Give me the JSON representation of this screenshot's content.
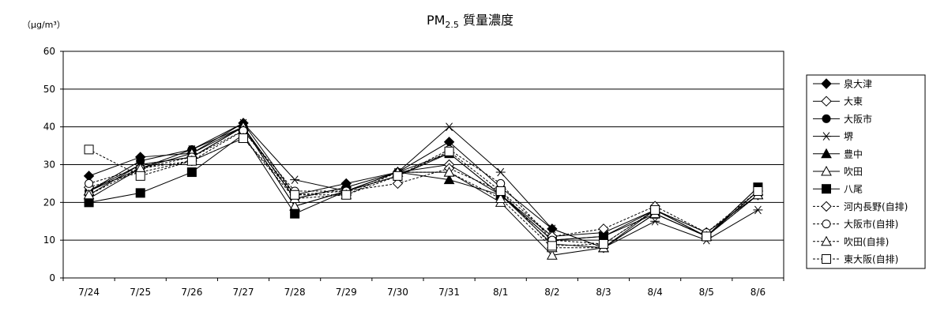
{
  "chart_data": {
    "type": "line",
    "title": "PM",
    "title_sub": "2.5",
    "title_suffix": " 質量濃度",
    "ylabel": "（μg/m³）",
    "xlabel": "",
    "ylim": [
      0,
      60
    ],
    "yticks": [
      0,
      10,
      20,
      30,
      40,
      50,
      60
    ],
    "grid": "horizontal",
    "legend_position": "right",
    "categories": [
      "7/24",
      "7/25",
      "7/26",
      "7/27",
      "7/28",
      "7/29",
      "7/30",
      "7/31",
      "8/1",
      "8/2",
      "8/3",
      "8/4",
      "8/5",
      "8/6"
    ],
    "series": [
      {
        "name": "泉大津",
        "marker": "diamond-filled",
        "dash": "solid",
        "values": [
          27,
          32,
          33,
          41,
          22,
          25,
          28,
          36,
          24,
          13,
          8,
          17,
          11,
          23
        ]
      },
      {
        "name": "大東",
        "marker": "diamond-open",
        "dash": "solid",
        "values": [
          22,
          30,
          32,
          40,
          21,
          24,
          28,
          30,
          22,
          11,
          12,
          18,
          12,
          22
        ]
      },
      {
        "name": "大阪市",
        "marker": "circle-filled",
        "dash": "solid",
        "values": [
          23,
          31,
          34,
          40,
          21,
          24,
          28,
          33,
          22,
          10,
          11,
          18,
          11,
          24
        ]
      },
      {
        "name": "堺",
        "marker": "asterisk",
        "dash": "solid",
        "values": [
          21,
          29,
          34,
          41,
          26,
          23,
          28,
          40,
          28,
          13,
          8,
          15,
          10,
          18
        ]
      },
      {
        "name": "豊中",
        "marker": "triangle-filled",
        "dash": "solid",
        "values": [
          23,
          30,
          32,
          40,
          19,
          23,
          28,
          26,
          22,
          9,
          8,
          17,
          11,
          23
        ]
      },
      {
        "name": "吹田",
        "marker": "triangle-open",
        "dash": "solid",
        "values": [
          23,
          29,
          33,
          40,
          19,
          23,
          28,
          28,
          20,
          6,
          8,
          18,
          11,
          22
        ]
      },
      {
        "name": "八尾",
        "marker": "square-filled",
        "dash": "solid",
        "values": [
          20,
          22.5,
          28,
          38,
          17,
          23,
          27,
          33,
          22,
          10,
          11,
          17,
          11,
          24
        ]
      },
      {
        "name": "河内長野(自排)",
        "marker": "diamond-open",
        "dash": "dashed",
        "values": [
          24,
          28,
          31,
          39,
          22,
          23,
          25,
          29,
          23,
          11,
          13,
          19,
          12,
          22
        ]
      },
      {
        "name": "大阪市(自排)",
        "marker": "circle-open",
        "dash": "dashed",
        "values": [
          25,
          29,
          32,
          39,
          23,
          23,
          27,
          34,
          25,
          10,
          9,
          18,
          12,
          23
        ]
      },
      {
        "name": "吹田(自排)",
        "marker": "triangle-open",
        "dash": "dashed",
        "values": [
          22,
          29,
          31,
          37,
          21,
          22,
          28,
          28,
          21,
          8,
          8,
          17,
          11,
          22
        ]
      },
      {
        "name": "東大阪(自排)",
        "marker": "square-open",
        "dash": "dashed",
        "values": [
          34,
          27,
          31,
          37,
          22,
          22,
          27,
          33.5,
          23,
          8.5,
          9,
          18,
          11,
          23
        ]
      }
    ]
  }
}
